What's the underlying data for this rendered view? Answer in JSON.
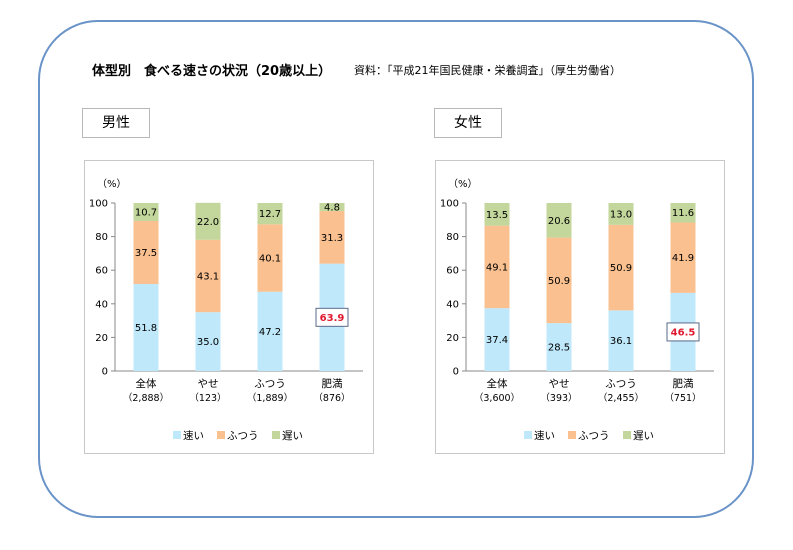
{
  "title": "体型別　食べる速さの状況（20歳以上）",
  "source": "資料：「平成21年国民健康・栄養調査」（厚生労働省）",
  "colors": {
    "fast": "#bfe9fb",
    "normal": "#fac090",
    "slow": "#c3d69b",
    "highlight_text": "#e0182e",
    "highlight_box": "#5a6a8a"
  },
  "chart_data": [
    {
      "type": "bar",
      "stacked": true,
      "group_label": "男性",
      "y_unit": "（%）",
      "ylim": [
        0,
        100
      ],
      "yticks": [
        "0",
        "20",
        "40",
        "60",
        "80",
        "100"
      ],
      "categories": [
        "全体",
        "やせ",
        "ふつう",
        "肥満"
      ],
      "sample_sizes": [
        "（2,888）",
        "（123）",
        "（1,889）",
        "（876）"
      ],
      "series": [
        {
          "name": "速い",
          "values": [
            51.8,
            35.0,
            47.2,
            63.9
          ],
          "labels": [
            "51.8",
            "35.0",
            "47.2",
            "63.9"
          ]
        },
        {
          "name": "ふつう",
          "values": [
            37.5,
            43.1,
            40.1,
            31.3
          ],
          "labels": [
            "37.5",
            "43.1",
            "40.1",
            "31.3"
          ]
        },
        {
          "name": "遅い",
          "values": [
            10.7,
            22.0,
            12.7,
            4.8
          ],
          "labels": [
            "10.7",
            "22.0",
            "12.7",
            "4.8"
          ]
        }
      ],
      "highlight": {
        "series": 0,
        "category": 3
      },
      "legend_position": "bottom"
    },
    {
      "type": "bar",
      "stacked": true,
      "group_label": "女性",
      "y_unit": "（%）",
      "ylim": [
        0,
        100
      ],
      "yticks": [
        "0",
        "20",
        "40",
        "60",
        "80",
        "100"
      ],
      "categories": [
        "全体",
        "やせ",
        "ふつう",
        "肥満"
      ],
      "sample_sizes": [
        "（3,600）",
        "（393）",
        "（2,455）",
        "（751）"
      ],
      "series": [
        {
          "name": "速い",
          "values": [
            37.4,
            28.5,
            36.1,
            46.5
          ],
          "labels": [
            "37.4",
            "28.5",
            "36.1",
            "46.5"
          ]
        },
        {
          "name": "ふつう",
          "values": [
            49.1,
            50.9,
            50.9,
            41.9
          ],
          "labels": [
            "49.1",
            "50.9",
            "50.9",
            "41.9"
          ]
        },
        {
          "name": "遅い",
          "values": [
            13.5,
            20.6,
            13.0,
            11.6
          ],
          "labels": [
            "13.5",
            "20.6",
            "13.0",
            "11.6"
          ]
        }
      ],
      "highlight": {
        "series": 0,
        "category": 3
      },
      "legend_position": "bottom"
    }
  ]
}
